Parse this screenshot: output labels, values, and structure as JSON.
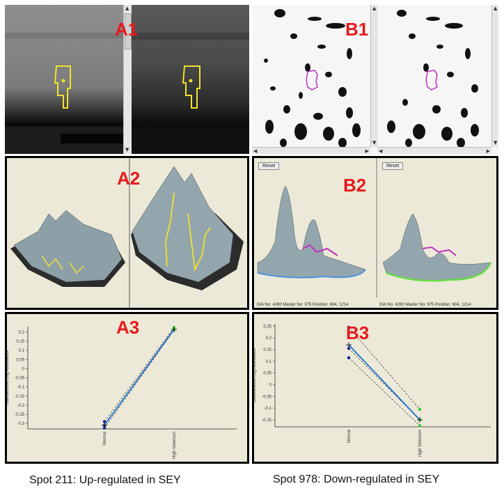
{
  "panels": {
    "a1": {
      "label": "A1"
    },
    "a2": {
      "label": "A2"
    },
    "a3": {
      "label": "A3"
    },
    "b1": {
      "label": "B1"
    },
    "b2": {
      "label": "B2",
      "reset_left": "Reset",
      "reset_right": "Reset",
      "status_left": "DIA No: 4280  Master No: 975  Position: 604, 1214",
      "status_right": "DIA No: 4280  Master No: 975  Position: 604, 1214"
    },
    "b3": {
      "label": "B3"
    }
  },
  "captions": {
    "left": "Spot 211: Up-regulated in SEY",
    "right": "Spot 978: Down-regulated in SEY"
  },
  "colors": {
    "label_red": "#e8191b",
    "spot_outline_yellow": "#f2e22a",
    "spot_outline_magenta": "#c030c0",
    "line_blue": "#1f6fd0",
    "point_green": "#33cc33",
    "point_navy": "#1a1a8c",
    "panel_bg": "#ece9d8"
  },
  "chart_data": [
    {
      "type": "line",
      "title": "",
      "ylabel": "Standardized Log Abundance",
      "categories": [
        "Normal",
        "High Selenium"
      ],
      "yticks": [
        "0.2",
        "0.15",
        "0.1",
        "0.05",
        "0",
        "-0.05",
        "-0.1",
        "-0.15",
        "-0.2",
        "-0.25",
        "-0.3"
      ],
      "ylim": [
        -0.33,
        0.23
      ],
      "series": [
        {
          "values": [
            -0.31,
            0.215
          ]
        },
        {
          "values": [
            -0.29,
            0.225
          ]
        },
        {
          "values": [
            -0.325,
            0.21
          ]
        }
      ],
      "mean": [
        -0.31,
        0.215
      ]
    },
    {
      "type": "line",
      "title": "",
      "ylabel": "Standardized Log Abundance",
      "categories": [
        "Normal",
        "High Selenium"
      ],
      "yticks": [
        "0.25",
        "0.2",
        "0.15",
        "0.1",
        "0.05",
        "0",
        "-0.05",
        "-0.1",
        "-0.15"
      ],
      "ylim": [
        -0.18,
        0.26
      ],
      "series": [
        {
          "values": [
            0.245,
            -0.105
          ]
        },
        {
          "values": [
            0.155,
            -0.15
          ]
        },
        {
          "values": [
            0.115,
            -0.175
          ]
        }
      ],
      "mean": [
        0.17,
        -0.15
      ]
    }
  ]
}
